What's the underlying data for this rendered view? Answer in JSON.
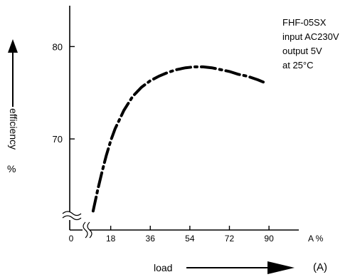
{
  "chart_data": {
    "type": "line",
    "title": "",
    "xlabel": "load",
    "x_unit": "(A)",
    "x_axis_suffix": "A %",
    "ylabel": "efficiency",
    "y_unit": "%",
    "x_ticks": [
      "0",
      "18",
      "36",
      "54",
      "72",
      "90"
    ],
    "y_ticks": [
      "70",
      "80"
    ],
    "xlim": [
      0,
      95
    ],
    "ylim": [
      61,
      85
    ],
    "grid": false,
    "annotations": [
      "FHF-05SX",
      "input AC230V",
      "output 5V",
      "at 25°C"
    ],
    "series": [
      {
        "x": [
          10,
          12,
          14,
          16,
          18,
          20,
          24,
          28,
          32,
          36,
          40,
          44,
          48,
          52,
          56,
          60,
          64,
          68,
          72,
          76,
          80,
          85,
          88
        ],
        "y": [
          62.2,
          64.4,
          66.4,
          68.2,
          69.8,
          71.1,
          73.1,
          74.6,
          75.6,
          76.3,
          76.8,
          77.2,
          77.5,
          77.7,
          77.8,
          77.8,
          77.7,
          77.5,
          77.3,
          77.0,
          76.8,
          76.4,
          76.1
        ],
        "style": "dash-dot"
      }
    ]
  }
}
